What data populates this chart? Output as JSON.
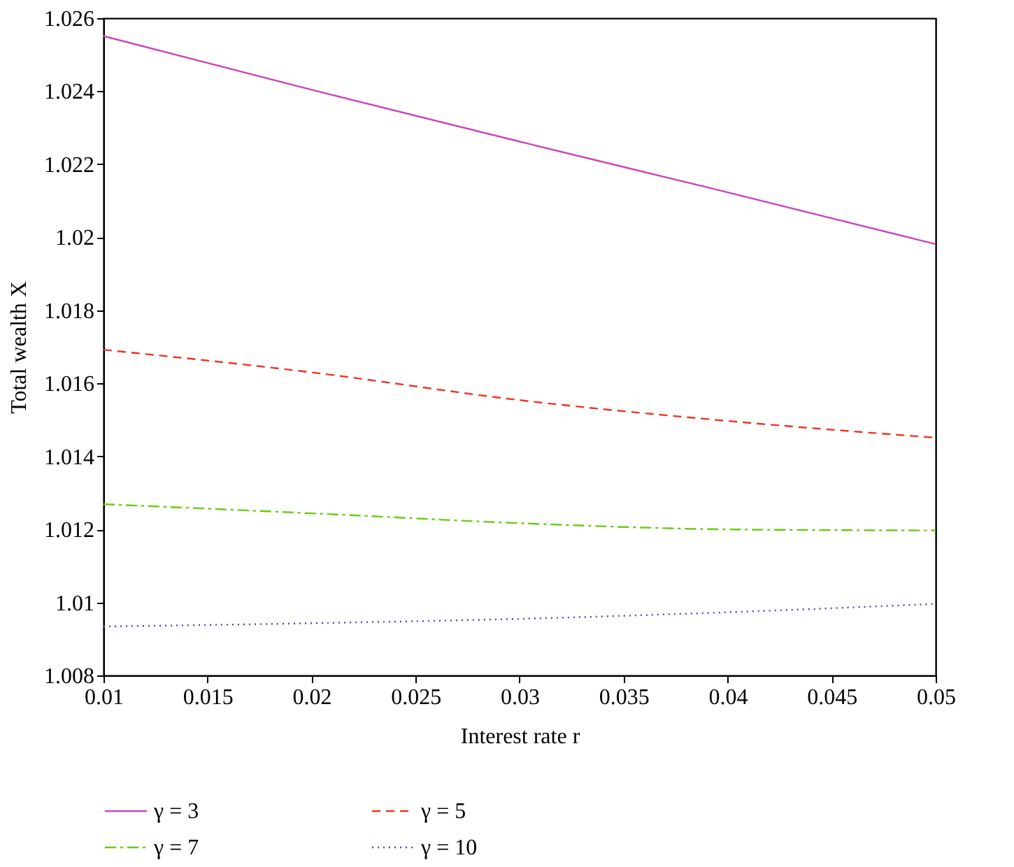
{
  "chart_data": {
    "type": "line",
    "xlabel": "Interest rate r",
    "ylabel": "Total wealth X",
    "x": [
      0.01,
      0.02,
      0.03,
      0.04,
      0.05
    ],
    "series": [
      {
        "name": "γ = 3",
        "color": "#cc44bb",
        "line_style": "solid",
        "values": [
          1.02551,
          1.02404,
          1.02262,
          1.02123,
          1.01981
        ]
      },
      {
        "name": "γ = 5",
        "color": "#ee3322",
        "line_style": "dashed",
        "values": [
          1.01692,
          1.0163,
          1.01554,
          1.01497,
          1.01451
        ]
      },
      {
        "name": "γ = 7",
        "color": "#66cc11",
        "line_style": "dashdot",
        "values": [
          1.01269,
          1.01244,
          1.01217,
          1.012,
          1.01197
        ]
      },
      {
        "name": "γ = 10",
        "color": "#4444dd",
        "line_style": "dotted",
        "values": [
          1.00934,
          1.00943,
          1.00955,
          1.00973,
          1.00996
        ]
      }
    ],
    "xlim": [
      0.01,
      0.05
    ],
    "xticks": [
      0.01,
      0.015,
      0.02,
      0.025,
      0.03,
      0.035,
      0.04,
      0.045,
      0.05
    ],
    "ylim": [
      1.008,
      1.026
    ],
    "yticks": [
      1.008,
      1.01,
      1.012,
      1.014,
      1.016,
      1.018,
      1.02,
      1.022,
      1.024,
      1.026
    ],
    "grid": false,
    "legend": "bottom",
    "marker": "none"
  }
}
